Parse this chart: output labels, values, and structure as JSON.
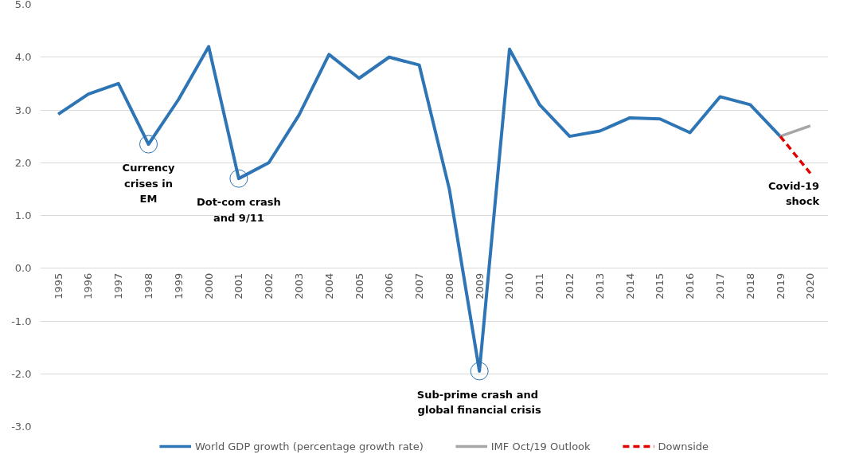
{
  "chart_data": {
    "type": "line",
    "categories": [
      "1995",
      "1996",
      "1997",
      "1998",
      "1999",
      "2000",
      "2001",
      "2002",
      "2003",
      "2004",
      "2005",
      "2006",
      "2007",
      "2008",
      "2009",
      "2010",
      "2011",
      "2012",
      "2013",
      "2014",
      "2015",
      "2016",
      "2017",
      "2018",
      "2019",
      "2020"
    ],
    "series": [
      {
        "name": "World GDP growth (percentage growth rate)",
        "color": "#2e75b6",
        "line_style": "solid",
        "values": [
          2.92,
          3.3,
          3.5,
          2.35,
          3.2,
          4.2,
          1.7,
          2.0,
          2.9,
          4.05,
          3.6,
          4.0,
          3.85,
          1.5,
          -1.95,
          4.15,
          3.1,
          2.5,
          2.6,
          2.85,
          2.83,
          2.57,
          3.25,
          3.1,
          2.5,
          null
        ]
      },
      {
        "name": "IMF Oct/19 Outlook",
        "color": "#a6a6a6",
        "line_style": "solid",
        "values": [
          null,
          null,
          null,
          null,
          null,
          null,
          null,
          null,
          null,
          null,
          null,
          null,
          null,
          null,
          null,
          null,
          null,
          null,
          null,
          null,
          null,
          null,
          null,
          null,
          2.5,
          2.7
        ]
      },
      {
        "name": "Downside",
        "color": "#e00000",
        "line_style": "dashed",
        "values": [
          null,
          null,
          null,
          null,
          null,
          null,
          null,
          null,
          null,
          null,
          null,
          null,
          null,
          null,
          null,
          null,
          null,
          null,
          null,
          null,
          null,
          null,
          null,
          null,
          2.5,
          1.8
        ]
      }
    ],
    "annotations": [
      {
        "text": "Currency\ncrises in\nEM",
        "x": "1998",
        "y": 2.35
      },
      {
        "text": "Dot-com crash\nand 9/11",
        "x": "2001",
        "y": 1.7
      },
      {
        "text": "Sub-prime  crash and\nglobal financial crisis",
        "x": "2009",
        "y": -1.95
      },
      {
        "text": "Covid-19\nshock",
        "x": "2020",
        "y": 1.8
      }
    ],
    "ylim": [
      -3,
      5
    ],
    "yticks": [
      {
        "value": -3,
        "label": "-3.0"
      },
      {
        "value": -2,
        "label": "-2.0"
      },
      {
        "value": -1,
        "label": "-1.0"
      },
      {
        "value": 0,
        "label": "0.0"
      },
      {
        "value": 1,
        "label": "1.0"
      },
      {
        "value": 2,
        "label": "2.0"
      },
      {
        "value": 3,
        "label": "3.0"
      },
      {
        "value": 4,
        "label": "4.0"
      },
      {
        "value": 5,
        "label": "5.0"
      }
    ],
    "grid": "y",
    "legend": "bottom",
    "marker": "none"
  }
}
